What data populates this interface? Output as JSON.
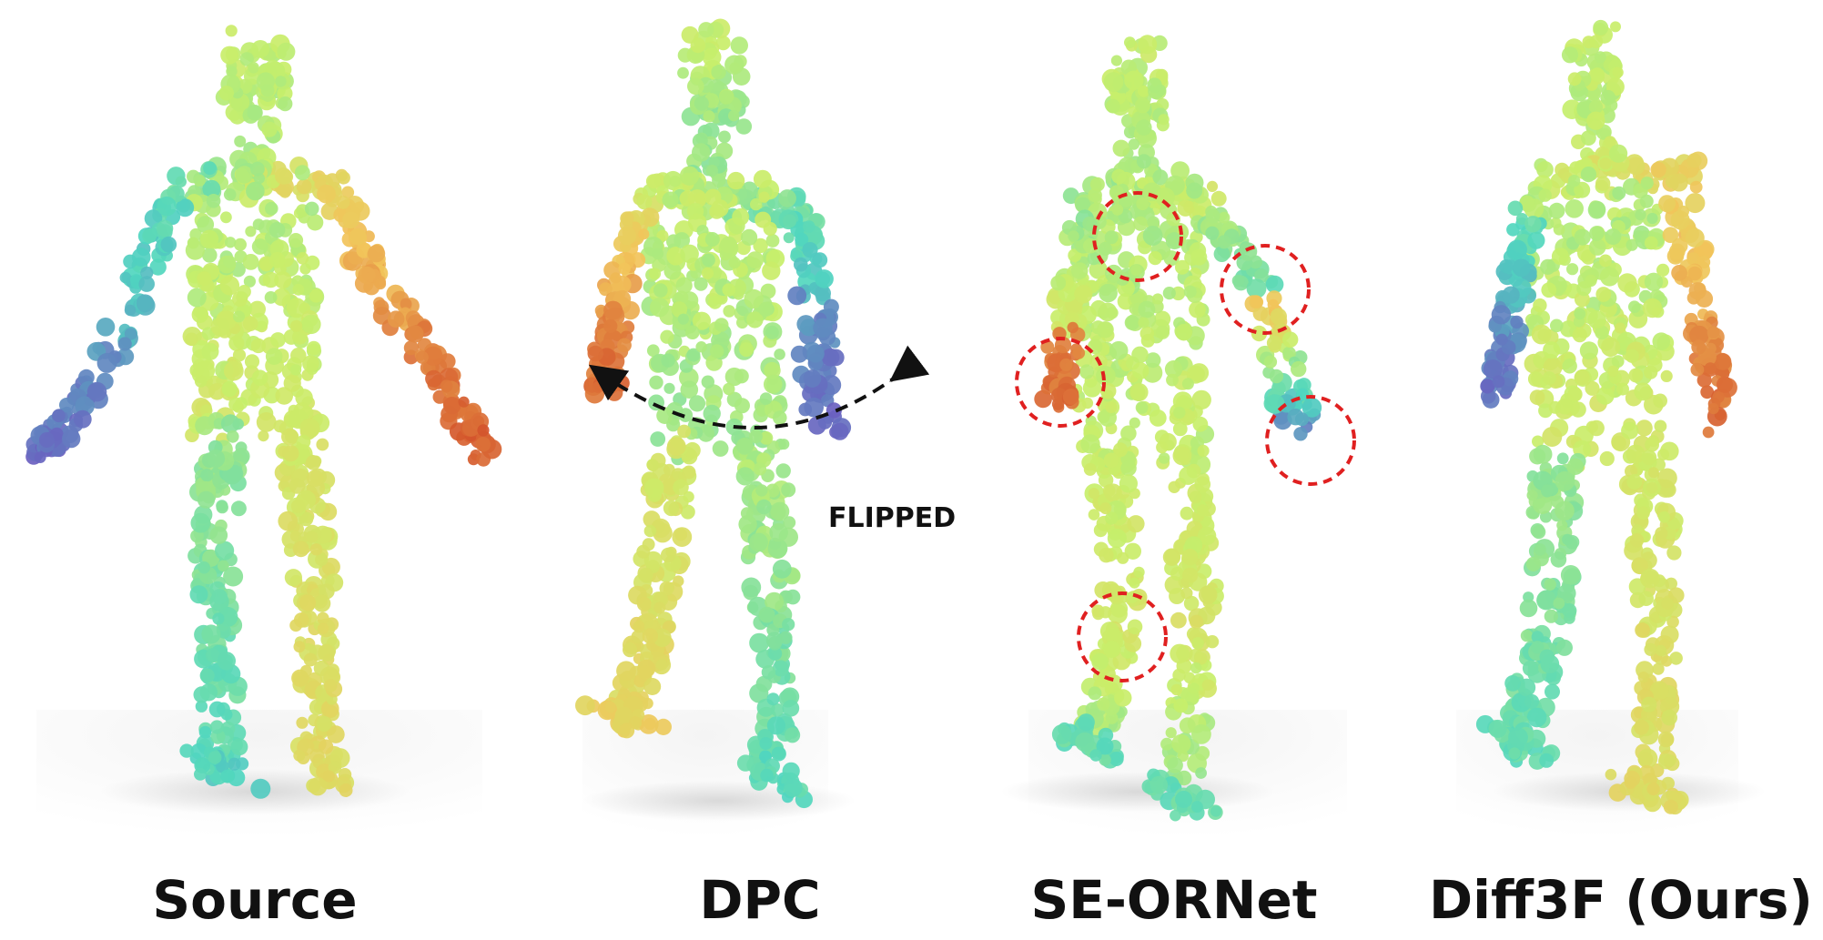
{
  "panels": [
    {
      "id": "source",
      "label": "Source"
    },
    {
      "id": "dpc",
      "label": "DPC"
    },
    {
      "id": "se-ornet",
      "label": "SE-ORNet"
    },
    {
      "id": "diff3f",
      "label": "Diff3F (Ours)"
    }
  ],
  "annotation": "FLIPPED",
  "colors": {
    "cool_end": "#6a5fc0",
    "mid_cool": "#4fd6c0",
    "mid": "#c8ef6a",
    "mid_warm": "#f2c45a",
    "warm_end": "#d4552c",
    "highlight_circle": "#e02020"
  }
}
